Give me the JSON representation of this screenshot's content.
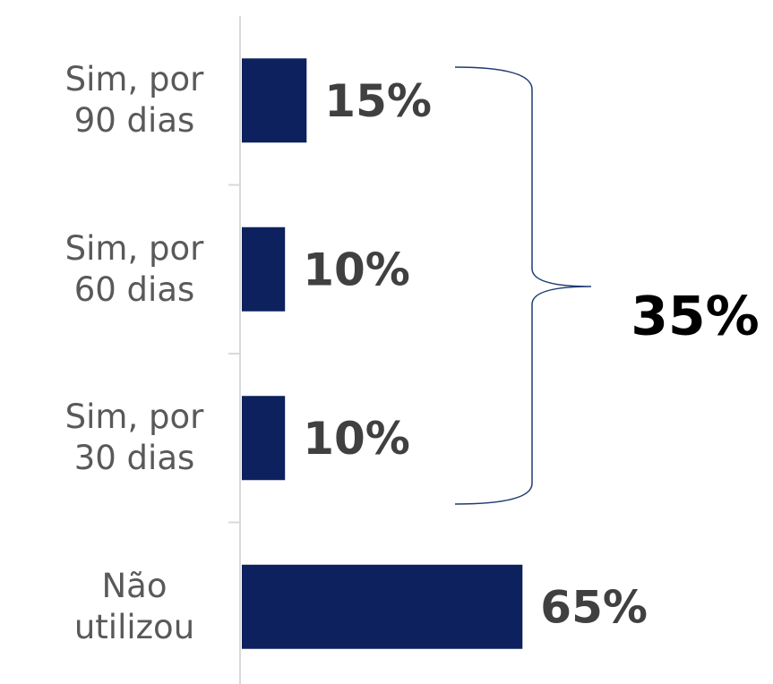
{
  "chart_data": {
    "type": "bar",
    "orientation": "horizontal",
    "categories": [
      "Sim, por 90 dias",
      "Sim, por 60 dias",
      "Sim, por 30 dias",
      "Não utilizou"
    ],
    "values": [
      15,
      10,
      10,
      65
    ],
    "value_labels": [
      "15%",
      "10%",
      "10%",
      "65%"
    ],
    "color": "#0c215e",
    "xlim": [
      0,
      100
    ],
    "bracket_label": "35%"
  }
}
